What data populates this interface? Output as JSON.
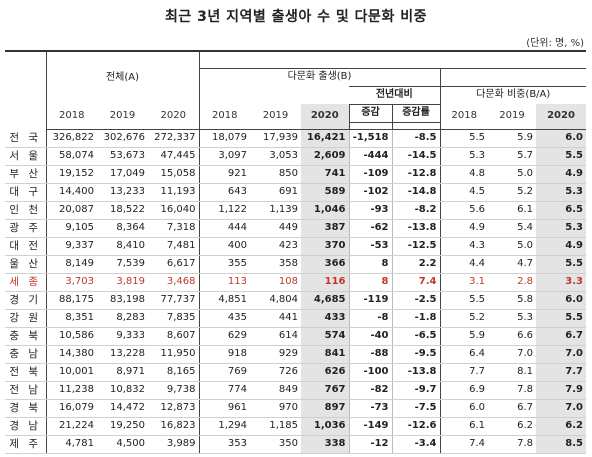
{
  "title": "최근 3년 지역별 출생아 수 및 다문화 비중",
  "unit": "(단위: 명, %)",
  "headers": {
    "total": "전체(A)",
    "multicultural_births": "다문화 출생(B)",
    "yoy": "전년대비",
    "change": "증감",
    "change_rate": "증감률",
    "ratio": "다문화 비중(B/A)",
    "years": [
      "2018",
      "2019",
      "2020"
    ]
  },
  "rows": [
    {
      "region": "전 국",
      "t2018": "326,822",
      "t2019": "302,676",
      "t2020": "272,337",
      "m2018": "18,079",
      "m2019": "17,939",
      "m2020": "16,421",
      "chg": "-1,518",
      "rate": "-8.5",
      "r2018": "5.5",
      "r2019": "5.9",
      "r2020": "6.0"
    },
    {
      "region": "서 울",
      "t2018": "58,074",
      "t2019": "53,673",
      "t2020": "47,445",
      "m2018": "3,097",
      "m2019": "3,053",
      "m2020": "2,609",
      "chg": "-444",
      "rate": "-14.5",
      "r2018": "5.3",
      "r2019": "5.7",
      "r2020": "5.5"
    },
    {
      "region": "부 산",
      "t2018": "19,152",
      "t2019": "17,049",
      "t2020": "15,058",
      "m2018": "921",
      "m2019": "850",
      "m2020": "741",
      "chg": "-109",
      "rate": "-12.8",
      "r2018": "4.8",
      "r2019": "5.0",
      "r2020": "4.9"
    },
    {
      "region": "대 구",
      "t2018": "14,400",
      "t2019": "13,233",
      "t2020": "11,193",
      "m2018": "643",
      "m2019": "691",
      "m2020": "589",
      "chg": "-102",
      "rate": "-14.8",
      "r2018": "4.5",
      "r2019": "5.2",
      "r2020": "5.3"
    },
    {
      "region": "인 천",
      "t2018": "20,087",
      "t2019": "18,522",
      "t2020": "16,040",
      "m2018": "1,122",
      "m2019": "1,139",
      "m2020": "1,046",
      "chg": "-93",
      "rate": "-8.2",
      "r2018": "5.6",
      "r2019": "6.1",
      "r2020": "6.5"
    },
    {
      "region": "광 주",
      "t2018": "9,105",
      "t2019": "8,364",
      "t2020": "7,318",
      "m2018": "444",
      "m2019": "449",
      "m2020": "387",
      "chg": "-62",
      "rate": "-13.8",
      "r2018": "4.9",
      "r2019": "5.4",
      "r2020": "5.3"
    },
    {
      "region": "대 전",
      "t2018": "9,337",
      "t2019": "8,410",
      "t2020": "7,481",
      "m2018": "400",
      "m2019": "423",
      "m2020": "370",
      "chg": "-53",
      "rate": "-12.5",
      "r2018": "4.3",
      "r2019": "5.0",
      "r2020": "4.9"
    },
    {
      "region": "울 산",
      "t2018": "8,149",
      "t2019": "7,539",
      "t2020": "6,617",
      "m2018": "355",
      "m2019": "358",
      "m2020": "366",
      "chg": "8",
      "rate": "2.2",
      "r2018": "4.4",
      "r2019": "4.7",
      "r2020": "5.5"
    },
    {
      "region": "세 종",
      "t2018": "3,703",
      "t2019": "3,819",
      "t2020": "3,468",
      "m2018": "113",
      "m2019": "108",
      "m2020": "116",
      "chg": "8",
      "rate": "7.4",
      "r2018": "3.1",
      "r2019": "2.8",
      "r2020": "3.3",
      "highlight": true
    },
    {
      "region": "경 기",
      "t2018": "88,175",
      "t2019": "83,198",
      "t2020": "77,737",
      "m2018": "4,851",
      "m2019": "4,804",
      "m2020": "4,685",
      "chg": "-119",
      "rate": "-2.5",
      "r2018": "5.5",
      "r2019": "5.8",
      "r2020": "6.0"
    },
    {
      "region": "강 원",
      "t2018": "8,351",
      "t2019": "8,283",
      "t2020": "7,835",
      "m2018": "435",
      "m2019": "441",
      "m2020": "433",
      "chg": "-8",
      "rate": "-1.8",
      "r2018": "5.2",
      "r2019": "5.3",
      "r2020": "5.5"
    },
    {
      "region": "충 북",
      "t2018": "10,586",
      "t2019": "9,333",
      "t2020": "8,607",
      "m2018": "629",
      "m2019": "614",
      "m2020": "574",
      "chg": "-40",
      "rate": "-6.5",
      "r2018": "5.9",
      "r2019": "6.6",
      "r2020": "6.7"
    },
    {
      "region": "충 남",
      "t2018": "14,380",
      "t2019": "13,228",
      "t2020": "11,950",
      "m2018": "918",
      "m2019": "929",
      "m2020": "841",
      "chg": "-88",
      "rate": "-9.5",
      "r2018": "6.4",
      "r2019": "7.0",
      "r2020": "7.0"
    },
    {
      "region": "전 북",
      "t2018": "10,001",
      "t2019": "8,971",
      "t2020": "8,165",
      "m2018": "769",
      "m2019": "726",
      "m2020": "626",
      "chg": "-100",
      "rate": "-13.8",
      "r2018": "7.7",
      "r2019": "8.1",
      "r2020": "7.7"
    },
    {
      "region": "전 남",
      "t2018": "11,238",
      "t2019": "10,832",
      "t2020": "9,738",
      "m2018": "774",
      "m2019": "849",
      "m2020": "767",
      "chg": "-82",
      "rate": "-9.7",
      "r2018": "6.9",
      "r2019": "7.8",
      "r2020": "7.9"
    },
    {
      "region": "경 북",
      "t2018": "16,079",
      "t2019": "14,472",
      "t2020": "12,873",
      "m2018": "961",
      "m2019": "970",
      "m2020": "897",
      "chg": "-73",
      "rate": "-7.5",
      "r2018": "6.0",
      "r2019": "6.7",
      "r2020": "7.0"
    },
    {
      "region": "경 남",
      "t2018": "21,224",
      "t2019": "19,250",
      "t2020": "16,823",
      "m2018": "1,294",
      "m2019": "1,185",
      "m2020": "1,036",
      "chg": "-149",
      "rate": "-12.6",
      "r2018": "6.1",
      "r2019": "6.2",
      "r2020": "6.2"
    },
    {
      "region": "제 주",
      "t2018": "4,781",
      "t2019": "4,500",
      "t2020": "3,989",
      "m2018": "353",
      "m2019": "350",
      "m2020": "338",
      "chg": "-12",
      "rate": "-3.4",
      "r2018": "7.4",
      "r2019": "7.8",
      "r2020": "8.5"
    }
  ]
}
